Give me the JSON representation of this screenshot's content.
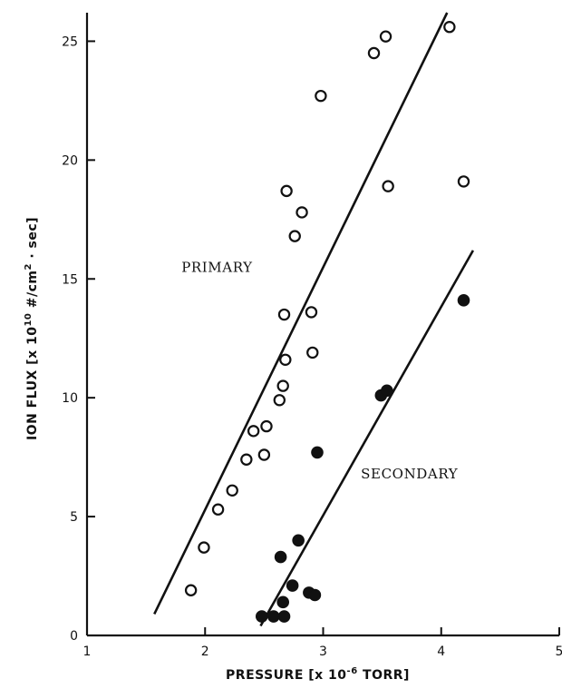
{
  "chart_data": {
    "type": "scatter",
    "xlabel_main": "PRESSURE [x 10",
    "xlabel_exp": "-6",
    "xlabel_tail": " TORR]",
    "ylabel_main": "ION FLUX [x 10",
    "ylabel_exp": "10",
    "ylabel_mid": " #/cm",
    "ylabel_exp2": "2",
    "ylabel_tail": " · sec]",
    "xlim": [
      1,
      5
    ],
    "ylim": [
      0,
      26.2
    ],
    "xticks": [
      "1",
      "2",
      "3",
      "4",
      "5"
    ],
    "yticks": [
      "0",
      "5",
      "10",
      "15",
      "20",
      "25"
    ],
    "grid": false,
    "series": [
      {
        "name": "PRIMARY",
        "marker": "open-circle",
        "points": [
          [
            1.88,
            1.9
          ],
          [
            1.99,
            3.7
          ],
          [
            2.11,
            5.3
          ],
          [
            2.23,
            6.1
          ],
          [
            2.35,
            7.4
          ],
          [
            2.41,
            8.6
          ],
          [
            2.5,
            7.6
          ],
          [
            2.52,
            8.8
          ],
          [
            2.63,
            9.9
          ],
          [
            2.66,
            10.5
          ],
          [
            2.68,
            11.6
          ],
          [
            2.67,
            13.5
          ],
          [
            2.76,
            16.8
          ],
          [
            2.82,
            17.8
          ],
          [
            2.69,
            18.7
          ],
          [
            2.91,
            11.9
          ],
          [
            2.9,
            13.6
          ],
          [
            2.98,
            22.7
          ],
          [
            3.43,
            24.5
          ],
          [
            3.53,
            25.2
          ],
          [
            3.55,
            18.9
          ],
          [
            4.07,
            25.6
          ],
          [
            4.19,
            19.1
          ]
        ],
        "fit_line": [
          [
            1.57,
            0.9
          ],
          [
            4.05,
            26.2
          ]
        ]
      },
      {
        "name": "SECONDARY",
        "marker": "filled-circle",
        "points": [
          [
            2.48,
            0.8
          ],
          [
            2.58,
            0.8
          ],
          [
            2.67,
            0.8
          ],
          [
            2.66,
            1.4
          ],
          [
            2.74,
            2.1
          ],
          [
            2.64,
            3.3
          ],
          [
            2.79,
            4.0
          ],
          [
            2.88,
            1.8
          ],
          [
            2.93,
            1.7
          ],
          [
            2.95,
            7.7
          ],
          [
            3.49,
            10.1
          ],
          [
            3.54,
            10.3
          ],
          [
            4.19,
            14.1
          ]
        ],
        "fit_line": [
          [
            2.47,
            0.4
          ],
          [
            4.27,
            16.2
          ]
        ]
      }
    ],
    "annotations": [
      {
        "text": "PRIMARY",
        "x": 1.8,
        "y": 15.3
      },
      {
        "text": "SECONDARY",
        "x": 3.32,
        "y": 6.6
      }
    ]
  }
}
